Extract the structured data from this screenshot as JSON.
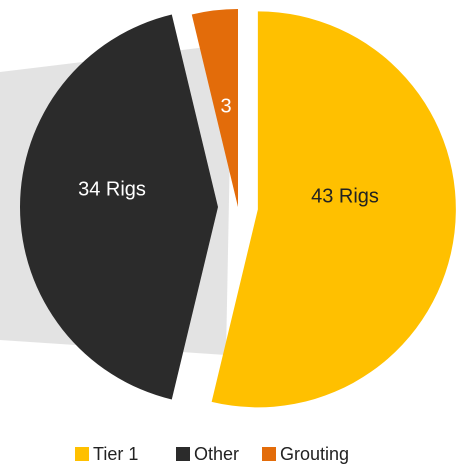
{
  "chart_data": {
    "type": "pie",
    "categories": [
      "Tier 1",
      "Other",
      "Grouting"
    ],
    "values": [
      43,
      34,
      3
    ],
    "value_labels": [
      "43 Rigs",
      "34 Rigs",
      "3"
    ],
    "colors": [
      "#FFC000",
      "#2B2B2B",
      "#E36C0A"
    ]
  }
}
